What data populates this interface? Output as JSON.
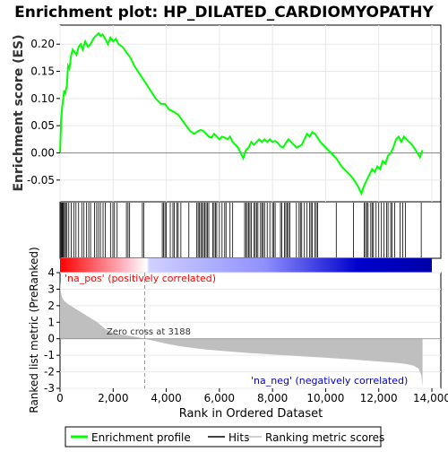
{
  "chart_data": {
    "type": "line",
    "title": "Enrichment plot: HP_DILATED_CARDIOMYOPATHY",
    "xlabel": "Rank in Ordered Dataset",
    "xlim": [
      0,
      14000
    ],
    "x_ticks": [
      "0",
      "2,000",
      "4,000",
      "6,000",
      "8,000",
      "10,000",
      "12,000",
      "14,000"
    ],
    "x_tick_values": [
      0,
      2000,
      4000,
      6000,
      8000,
      10000,
      12000,
      14000
    ],
    "es_panel": {
      "ylabel": "Enrichment score (ES)",
      "ylim": [
        -0.09,
        0.235
      ],
      "y_ticks": [
        "-0.05",
        "0.00",
        "0.05",
        "0.10",
        "0.15",
        "0.20"
      ],
      "y_tick_values": [
        -0.05,
        0.0,
        0.05,
        0.1,
        0.15,
        0.2
      ],
      "series": [
        {
          "name": "Enrichment profile",
          "color": "#00ff00",
          "x": [
            0,
            40,
            80,
            120,
            160,
            200,
            260,
            300,
            350,
            420,
            480,
            550,
            620,
            700,
            780,
            850,
            950,
            1050,
            1150,
            1250,
            1350,
            1450,
            1520,
            1600,
            1700,
            1800,
            1900,
            2000,
            2100,
            2200,
            2350,
            2500,
            2650,
            2800,
            3000,
            3200,
            3400,
            3600,
            3800,
            3950,
            4100,
            4300,
            4450,
            4600,
            4750,
            4900,
            5050,
            5200,
            5300,
            5400,
            5500,
            5600,
            5700,
            5800,
            5900,
            6000,
            6100,
            6200,
            6300,
            6400,
            6500,
            6600,
            6700,
            6800,
            6900,
            7000,
            7100,
            7200,
            7300,
            7400,
            7500,
            7600,
            7700,
            7800,
            7900,
            8000,
            8100,
            8200,
            8300,
            8400,
            8500,
            8600,
            8700,
            8800,
            8900,
            9000,
            9100,
            9200,
            9300,
            9400,
            9500,
            9600,
            9700,
            9800,
            9900,
            10000,
            10200,
            10400,
            10600,
            10800,
            11000,
            11200,
            11350,
            11450,
            11550,
            11650,
            11750,
            11850,
            11950,
            12050,
            12150,
            12250,
            12350,
            12450,
            12550,
            12650,
            12750,
            12850,
            12950,
            13050,
            13150,
            13250,
            13350,
            13450,
            13550,
            13650
          ],
          "values": [
            0.0,
            0.06,
            0.085,
            0.1,
            0.115,
            0.11,
            0.125,
            0.16,
            0.155,
            0.18,
            0.19,
            0.185,
            0.18,
            0.195,
            0.2,
            0.19,
            0.205,
            0.195,
            0.2,
            0.21,
            0.215,
            0.22,
            0.215,
            0.218,
            0.21,
            0.2,
            0.212,
            0.205,
            0.21,
            0.2,
            0.195,
            0.185,
            0.175,
            0.16,
            0.145,
            0.13,
            0.115,
            0.1,
            0.09,
            0.09,
            0.08,
            0.075,
            0.07,
            0.06,
            0.05,
            0.04,
            0.035,
            0.04,
            0.042,
            0.04,
            0.035,
            0.03,
            0.028,
            0.035,
            0.03,
            0.025,
            0.03,
            0.028,
            0.025,
            0.03,
            0.02,
            0.015,
            0.01,
            0.0,
            -0.01,
            0.005,
            0.01,
            0.02,
            0.015,
            0.02,
            0.025,
            0.02,
            0.025,
            0.02,
            0.025,
            0.02,
            0.022,
            0.018,
            0.012,
            0.01,
            0.018,
            0.025,
            0.02,
            0.015,
            0.01,
            0.012,
            0.015,
            0.025,
            0.035,
            0.03,
            0.038,
            0.035,
            0.028,
            0.02,
            0.015,
            0.01,
            0.0,
            -0.01,
            -0.025,
            -0.035,
            -0.045,
            -0.06,
            -0.075,
            -0.06,
            -0.05,
            -0.04,
            -0.03,
            -0.035,
            -0.025,
            -0.03,
            -0.015,
            -0.02,
            -0.005,
            0.0,
            0.01,
            0.025,
            0.03,
            0.02,
            0.03,
            0.025,
            0.02,
            0.015,
            0.008,
            0.0,
            -0.008,
            0.005
          ]
        }
      ]
    },
    "hits": [
      10,
      40,
      70,
      100,
      130,
      170,
      210,
      260,
      330,
      420,
      520,
      600,
      700,
      820,
      900,
      1000,
      1080,
      1150,
      1300,
      1380,
      1450,
      1520,
      1620,
      1700,
      1900,
      1990,
      2050,
      2150,
      2500,
      2560,
      2620,
      3100,
      3150,
      3850,
      3900,
      3950,
      4000,
      4150,
      4250,
      4300,
      4400,
      4450,
      4550,
      4850,
      5150,
      5200,
      5250,
      5300,
      5350,
      5400,
      5450,
      5500,
      5550,
      5600,
      5750,
      5800,
      5850,
      5900,
      6000,
      6100,
      6200,
      6250,
      6400,
      6500,
      6950,
      7000,
      7050,
      7100,
      7150,
      7200,
      7300,
      7350,
      7400,
      7450,
      7550,
      7600,
      7650,
      7700,
      7800,
      7900,
      8000,
      8050,
      8100,
      8300,
      8350,
      8450,
      8500,
      8550,
      8600,
      8650,
      8900,
      9000,
      9050,
      9100,
      9200,
      9300,
      9400,
      9450,
      9500,
      9600,
      9650,
      9700,
      10400,
      11050,
      11450,
      11500,
      11550,
      11600,
      11700,
      11750,
      11800,
      11900,
      12000,
      12100,
      12200,
      12300,
      12350,
      12450,
      12500,
      12600,
      12800,
      12900,
      13000,
      13600
    ],
    "metric_panel": {
      "ylabel": "Ranked list metric (PreRanked)",
      "ylim": [
        -3,
        4
      ],
      "y_ticks": [
        "-3",
        "-2",
        "-1",
        "0",
        "1",
        "2",
        "3",
        "4"
      ],
      "y_tick_values": [
        -3,
        -2,
        -1,
        0,
        1,
        2,
        3,
        4
      ],
      "zero_cross_label": "Zero cross at 3188",
      "zero_cross_rank": 3188,
      "pos_label": "'na_pos' (positively correlated)",
      "neg_label": "'na_neg' (negatively correlated)",
      "profile": {
        "x": [
          0,
          30,
          80,
          150,
          300,
          500,
          800,
          1100,
          1400,
          1700,
          2000,
          2300,
          2600,
          2900,
          3188,
          3500,
          4000,
          4500,
          5000,
          5500,
          6000,
          7000,
          8000,
          9000,
          10000,
          11000,
          12000,
          12600,
          13000,
          13300,
          13500,
          13600,
          13650
        ],
        "values": [
          3.5,
          2.8,
          2.5,
          2.3,
          2.1,
          1.9,
          1.6,
          1.3,
          1.0,
          0.6,
          0.35,
          0.25,
          0.18,
          0.1,
          0.0,
          -0.12,
          -0.3,
          -0.45,
          -0.56,
          -0.65,
          -0.72,
          -0.85,
          -0.95,
          -1.05,
          -1.15,
          -1.25,
          -1.38,
          -1.45,
          -1.52,
          -1.62,
          -1.8,
          -2.2,
          -2.85
        ]
      }
    },
    "legend": {
      "placement": "bottom",
      "items": [
        {
          "label": "Enrichment profile",
          "color": "#00ff00"
        },
        {
          "label": "Hits",
          "color": "#000000"
        },
        {
          "label": "Ranking metric scores",
          "color": "#c0c0c0"
        }
      ]
    },
    "colors": {
      "profile_line": "#00ff00",
      "metric_fill": "#bfbfbf",
      "pos_text": "#ff0000",
      "neg_text": "#0000cc",
      "bar_red": "#ff0000",
      "bar_blue": "#0000cc"
    }
  }
}
